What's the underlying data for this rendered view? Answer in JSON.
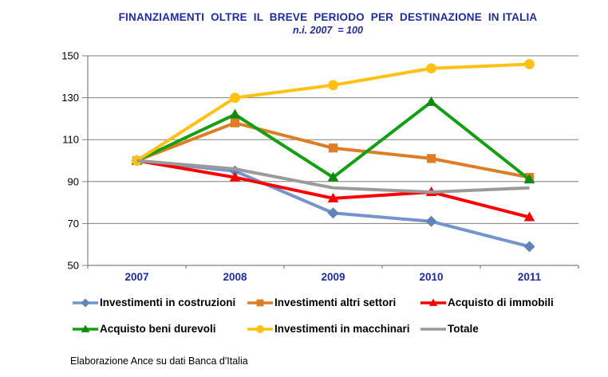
{
  "chart_data": {
    "type": "line",
    "title": "FINANZIAMENTI  OLTRE  IL  BREVE  PERIODO  PER  DESTINAZIONE  IN ITALIA",
    "subtitle": "n.i. 2007  = 100",
    "categories": [
      "2007",
      "2008",
      "2009",
      "2010",
      "2011"
    ],
    "ylim": [
      50,
      150
    ],
    "yticks": [
      150,
      130,
      110,
      90,
      70,
      50
    ],
    "grid": true,
    "legend_position": "bottom",
    "series": [
      {
        "name": "Investimenti in costruzioni",
        "color": "#7495CB",
        "marker_color": "#5E82B9",
        "marker": "diamond",
        "values": [
          100,
          95,
          75,
          71,
          59
        ]
      },
      {
        "name": "Investimenti altri settori",
        "color": "#DD7E26",
        "marker_color": "#DD7E26",
        "marker": "square",
        "values": [
          100,
          118,
          106,
          101,
          92
        ]
      },
      {
        "name": "Acquisto di immobili",
        "color": "#FE0000",
        "marker_color": "#FE0000",
        "marker": "triangle",
        "values": [
          100,
          92,
          82,
          85,
          73
        ]
      },
      {
        "name": "Acquisto beni durevoli",
        "color": "#12A012",
        "marker_color": "#0E8A0E",
        "marker": "triangle",
        "values": [
          100,
          122,
          92,
          128,
          91
        ]
      },
      {
        "name": "Investimenti in macchinari",
        "color": "#FFC113",
        "marker_color": "#FFC113",
        "marker": "circle",
        "values": [
          100,
          130,
          136,
          144,
          146
        ]
      },
      {
        "name": "Totale",
        "color": "#9A9A9A",
        "marker_color": "#9A9A9A",
        "marker": "none",
        "values": [
          100,
          96,
          87,
          85,
          87
        ]
      }
    ],
    "colors": {
      "grid": "#808080",
      "axis": "#808080",
      "title_text": "#1F2D9C",
      "xtick_label": "#1F2D9C",
      "ytick_label": "#000000",
      "legend_text": "#000000",
      "footer_text": "#000000",
      "background": "#FFFFFF"
    }
  },
  "footer": {
    "source": "Elaborazione Ance su dati Banca d'Italia"
  }
}
